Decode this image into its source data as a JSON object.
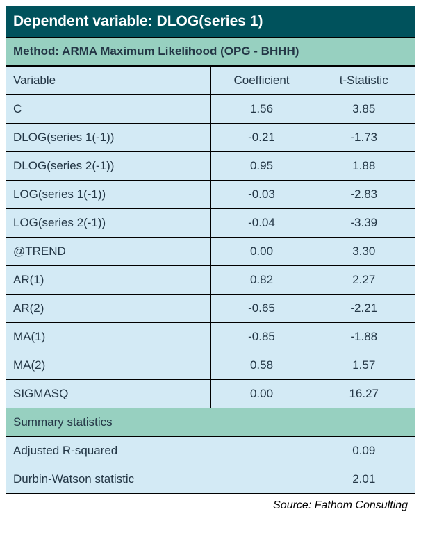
{
  "colors": {
    "header_bg": "#00525c",
    "header_text": "#ffffff",
    "subheader_bg": "#97d0c0",
    "cell_bg": "#d3eaf5",
    "cell_text": "#243746",
    "border": "#000000"
  },
  "title": "Dependent variable: DLOG(series 1)",
  "method": "Method: ARMA Maximum Likelihood (OPG - BHHH)",
  "columns": [
    "Variable",
    "Coefficient",
    "t-Statistic"
  ],
  "rows": [
    {
      "variable": "C",
      "coefficient": "1.56",
      "tstat": "3.85"
    },
    {
      "variable": "DLOG(series 1(-1))",
      "coefficient": "-0.21",
      "tstat": "-1.73"
    },
    {
      "variable": "DLOG(series 2(-1))",
      "coefficient": "0.95",
      "tstat": "1.88"
    },
    {
      "variable": "LOG(series 1(-1))",
      "coefficient": "-0.03",
      "tstat": "-2.83"
    },
    {
      "variable": "LOG(series 2(-1))",
      "coefficient": "-0.04",
      "tstat": "-3.39"
    },
    {
      "variable": "@TREND",
      "coefficient": "0.00",
      "tstat": "3.30"
    },
    {
      "variable": "AR(1)",
      "coefficient": "0.82",
      "tstat": "2.27"
    },
    {
      "variable": "AR(2)",
      "coefficient": "-0.65",
      "tstat": "-2.21"
    },
    {
      "variable": "MA(1)",
      "coefficient": "-0.85",
      "tstat": "-1.88"
    },
    {
      "variable": "MA(2)",
      "coefficient": "0.58",
      "tstat": "1.57"
    },
    {
      "variable": "SIGMASQ",
      "coefficient": "0.00",
      "tstat": "16.27"
    }
  ],
  "summary_header": "Summary statistics",
  "summary_rows": [
    {
      "label": "Adjusted R-squared",
      "value": "0.09"
    },
    {
      "label": "Durbin-Watson statistic",
      "value": "2.01"
    }
  ],
  "source": "Source: Fathom Consulting"
}
